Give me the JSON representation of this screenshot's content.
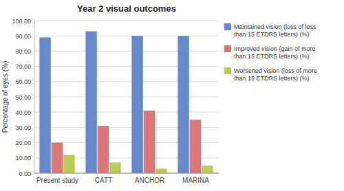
{
  "chart_data": {
    "type": "bar",
    "title": "Year 2 visual outcomes",
    "ylabel": "Percentage of eyes (%)",
    "categories": [
      "Present study",
      "CATT",
      "ANCHOR",
      "MARINA"
    ],
    "series": [
      {
        "name": "Maintained vision (loss of less\nthan 15 ETDRS letters) (%)",
        "color": "#6688CC",
        "values": [
          89,
          93,
          90,
          90
        ]
      },
      {
        "name": "Improved vision (gain of more\nthan 15 ETDRS letters) (%)",
        "color": "#DD7777",
        "values": [
          20,
          31,
          41,
          35
        ]
      },
      {
        "name": "Worsened vision (loss of more\nthan 15 ETDRS letters) (%)",
        "color": "#BBCC55",
        "values": [
          12,
          7,
          3,
          5
        ]
      }
    ],
    "ylim": [
      0,
      100
    ],
    "yticks": [
      {
        "value": 0,
        "label": "0.00"
      },
      {
        "value": 10,
        "label": "10.00"
      },
      {
        "value": 20,
        "label": "20.00"
      },
      {
        "value": 30,
        "label": "30.00"
      },
      {
        "value": 40,
        "label": "40.00"
      },
      {
        "value": 50,
        "label": "50.00"
      },
      {
        "value": 60,
        "label": "60.00"
      },
      {
        "value": 70,
        "label": "70.00"
      },
      {
        "value": 80,
        "label": "80.00"
      },
      {
        "value": 90,
        "label": "90.00"
      },
      {
        "value": 100,
        "label": "100.00"
      }
    ],
    "grid": true,
    "legend": "right"
  }
}
